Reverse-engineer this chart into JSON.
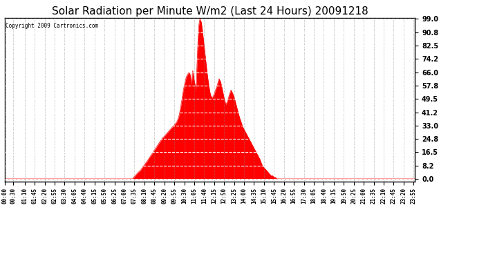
{
  "title": "Solar Radiation per Minute W/m2 (Last 24 Hours) 20091218",
  "copyright_text": "Copyright 2009 Cartronics.com",
  "yticks": [
    0.0,
    8.2,
    16.5,
    24.8,
    33.0,
    41.2,
    49.5,
    57.8,
    66.0,
    74.2,
    82.5,
    90.8,
    99.0
  ],
  "ymin": 0.0,
  "ymax": 99.0,
  "fill_color": "#FF0000",
  "line_color": "#FF0000",
  "bg_color": "#FFFFFF",
  "dashed_line_color": "#FF0000",
  "title_fontsize": 11,
  "xtick_labels": [
    "00:00",
    "00:30",
    "01:10",
    "01:45",
    "02:20",
    "02:55",
    "03:30",
    "04:05",
    "04:40",
    "05:15",
    "05:50",
    "06:25",
    "07:00",
    "07:35",
    "08:10",
    "08:45",
    "09:20",
    "09:55",
    "10:30",
    "11:05",
    "11:40",
    "12:15",
    "12:50",
    "13:25",
    "14:00",
    "14:35",
    "15:10",
    "15:45",
    "16:20",
    "16:55",
    "17:30",
    "18:05",
    "18:40",
    "19:15",
    "19:50",
    "20:25",
    "21:00",
    "21:35",
    "22:10",
    "22:45",
    "23:20",
    "23:55"
  ],
  "control_t": [
    0,
    449,
    452,
    458,
    463,
    468,
    475,
    483,
    491,
    500,
    507,
    515,
    522,
    530,
    537,
    545,
    552,
    558,
    563,
    568,
    573,
    578,
    583,
    588,
    593,
    598,
    603,
    608,
    613,
    617,
    621,
    625,
    629,
    633,
    637,
    640,
    643,
    646,
    648,
    650,
    652,
    654,
    656,
    658,
    660,
    662,
    664,
    666,
    668,
    670,
    672,
    675,
    678,
    681,
    685,
    690,
    695,
    700,
    705,
    710,
    716,
    722,
    728,
    734,
    740,
    746,
    752,
    758,
    764,
    770,
    776,
    782,
    788,
    794,
    800,
    806,
    812,
    818,
    824,
    830,
    836,
    842,
    848,
    854,
    860,
    866,
    872,
    878,
    884,
    890,
    896,
    900,
    905,
    910,
    915,
    920,
    925,
    930,
    935,
    940,
    945,
    950,
    955,
    960,
    965,
    1439
  ],
  "control_v": [
    0,
    0,
    1,
    2,
    3,
    4,
    5,
    7,
    9,
    11,
    13,
    15,
    17,
    19,
    21,
    23,
    25,
    26,
    27,
    28,
    29,
    30,
    31,
    32,
    33,
    34,
    35,
    37,
    40,
    44,
    48,
    53,
    57,
    60,
    63,
    64,
    65,
    66,
    66,
    65,
    63,
    60,
    58,
    65,
    67,
    65,
    62,
    60,
    58,
    55,
    58,
    72,
    85,
    95,
    99,
    97,
    90,
    82,
    74,
    66,
    58,
    52,
    50,
    52,
    55,
    58,
    62,
    60,
    55,
    50,
    46,
    48,
    52,
    55,
    53,
    50,
    46,
    42,
    38,
    35,
    32,
    30,
    28,
    26,
    24,
    22,
    20,
    18,
    16,
    14,
    12,
    10,
    8,
    7,
    6,
    5,
    4,
    3,
    2,
    2,
    1,
    1,
    0,
    0,
    0,
    0
  ]
}
